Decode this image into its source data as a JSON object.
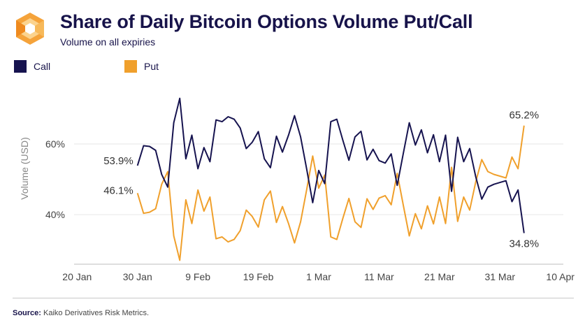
{
  "header": {
    "title": "Share of Daily Bitcoin Options Volume Put/Call",
    "subtitle": "Volume on all expiries"
  },
  "colors": {
    "call": "#16134f",
    "put": "#f0a02c",
    "grid": "#e6e6e6",
    "axis_text": "#444444"
  },
  "footer": {
    "source_label": "Source:",
    "source_text": "Kaiko Derivatives Risk Metrics."
  },
  "chart_data": {
    "type": "line",
    "title": "Share of Daily Bitcoin Options Volume Put/Call",
    "subtitle": "Volume on all expiries",
    "xlabel": "",
    "ylabel": "Volume (USD)",
    "x_start_day": 0,
    "x_range": [
      -10.5,
      70.5
    ],
    "ylim": [
      26,
      77
    ],
    "x_ticks": [
      {
        "day": -10,
        "label": "20 Jan"
      },
      {
        "day": 0,
        "label": "30 Jan"
      },
      {
        "day": 10,
        "label": "9 Feb"
      },
      {
        "day": 20,
        "label": "19 Feb"
      },
      {
        "day": 30,
        "label": "1 Mar"
      },
      {
        "day": 40,
        "label": "11 Mar"
      },
      {
        "day": 50,
        "label": "21 Mar"
      },
      {
        "day": 60,
        "label": "31 Mar"
      },
      {
        "day": 70,
        "label": "10 Apr"
      }
    ],
    "y_ticks": [
      {
        "value": 40,
        "label": "40%"
      },
      {
        "value": 60,
        "label": "60%"
      }
    ],
    "series": [
      {
        "name": "Call",
        "values": [
          53.9,
          59.5,
          59.3,
          58.2,
          51.4,
          47.8,
          66.0,
          72.9,
          55.8,
          62.5,
          53.0,
          59.0,
          55.0,
          66.8,
          66.3,
          67.7,
          67.0,
          64.5,
          58.7,
          60.5,
          63.5,
          55.8,
          53.3,
          62.2,
          57.7,
          62.5,
          68.0,
          62.0,
          53.0,
          43.4,
          52.5,
          48.8,
          66.3,
          67.0,
          61.0,
          55.4,
          62.0,
          63.6,
          55.5,
          58.5,
          55.3,
          54.6,
          57.2,
          48.3,
          57.3,
          66.0,
          59.7,
          64.0,
          57.5,
          62.6,
          55.0,
          62.5,
          46.6,
          61.9,
          55.0,
          58.7,
          50.7,
          44.4,
          47.8,
          48.6,
          49.1,
          49.6,
          43.7,
          47.0,
          34.8
        ],
        "start_label": "53.9%",
        "end_label": "34.8%"
      },
      {
        "name": "Put",
        "values": [
          46.1,
          40.4,
          40.7,
          41.7,
          48.6,
          52.2,
          34.0,
          27.1,
          44.2,
          37.5,
          47.0,
          41.0,
          45.0,
          33.2,
          33.7,
          32.3,
          33.0,
          35.5,
          41.3,
          39.5,
          36.5,
          44.2,
          46.7,
          37.8,
          42.3,
          37.5,
          32.0,
          38.0,
          47.0,
          56.6,
          47.5,
          51.2,
          33.7,
          33.0,
          39.0,
          44.6,
          38.0,
          36.4,
          44.5,
          41.5,
          44.7,
          45.4,
          42.8,
          51.7,
          42.7,
          34.0,
          40.3,
          36.0,
          42.5,
          37.4,
          45.0,
          37.5,
          53.4,
          38.1,
          45.0,
          41.3,
          49.3,
          55.6,
          52.2,
          51.4,
          50.9,
          50.4,
          56.3,
          53.0,
          65.2
        ],
        "start_label": "46.1%",
        "end_label": "65.2%"
      }
    ]
  },
  "legend": {
    "call_label": "Call",
    "put_label": "Put"
  }
}
